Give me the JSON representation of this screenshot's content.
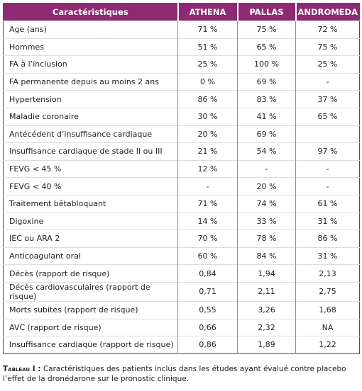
{
  "table": {
    "header": [
      "Caractéristiques",
      "ATHENA",
      "PALLAS",
      "ANDROMEDA"
    ],
    "rows": [
      [
        "Age (ans)",
        "71 %",
        "75 %",
        "72 %"
      ],
      [
        "Hommes",
        "51 %",
        "65 %",
        "75 %"
      ],
      [
        "FA à l’inclusion",
        "25 %",
        "100 %",
        "25 %"
      ],
      [
        "FA permanente depuis au moins 2 ans",
        "0 %",
        "69 %",
        "-"
      ],
      [
        "Hypertension",
        "86 %",
        "83 %",
        "37 %"
      ],
      [
        "Maladie coronaire",
        "30 %",
        "41 %",
        "65 %"
      ],
      [
        "Antécédent d’insuffisance cardiaque",
        "20 %",
        "69 %",
        ""
      ],
      [
        "Insuffisance cardiaque de stade II ou III",
        "21 %",
        "54 %",
        "97 %"
      ],
      [
        "FEVG < 45 %",
        "12 %",
        "-",
        "-"
      ],
      [
        "FEVG < 40 %",
        "-",
        "20 %",
        "-"
      ],
      [
        "Traitement bêtabloquant",
        "71 %",
        "74 %",
        "61 %"
      ],
      [
        "Digoxine",
        "14 %",
        "33 %",
        "31 %"
      ],
      [
        "IEC ou ARA 2",
        "70 %",
        "78 %",
        "86 %"
      ],
      [
        "Anticoagulant oral",
        "60 %",
        "84 %",
        "31 %"
      ],
      [
        "Décès (rapport de risque)",
        "0,84",
        "1,94",
        "2,13"
      ],
      [
        "Décès cardiovasculaires (rapport de risque)",
        "0,71",
        "2,11",
        "2,75"
      ],
      [
        "Morts subites (rapport de risque)",
        "0,55",
        "3,26",
        "1,68"
      ],
      [
        "AVC (rapport de risque)",
        "0,66",
        "2,32",
        "NA"
      ],
      [
        "Insuffisance cardiaque (rapport de risque)",
        "0,86",
        "1,89",
        "1,22"
      ]
    ]
  },
  "caption": {
    "label": "Tableau I :",
    "text": "Caractéristiques des patients inclus dans les études ayant évalué contre placebo l’effet de la dronédarone sur le pronostic clinique."
  }
}
